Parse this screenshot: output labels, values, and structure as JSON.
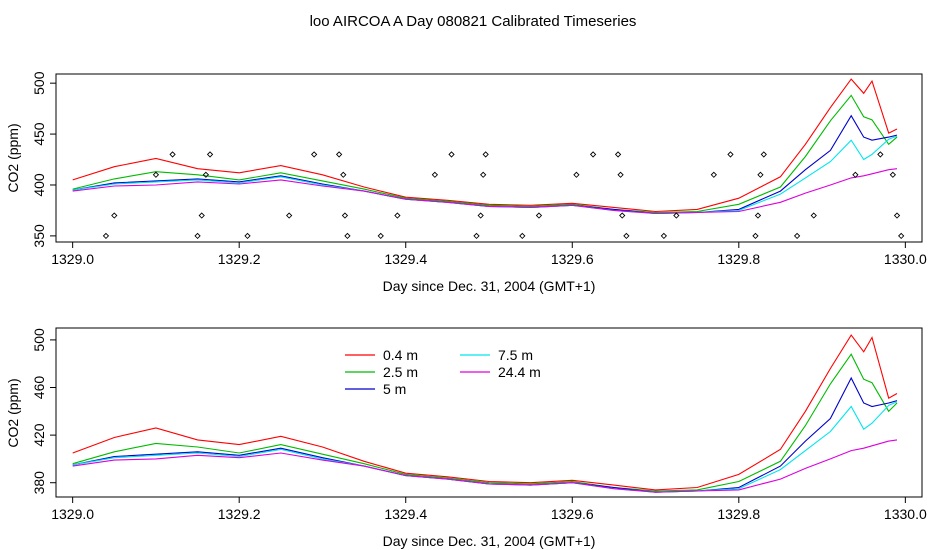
{
  "title": "loo AIRCOA A  Day 080821  Calibrated Timeseries",
  "colors": {
    "0.4 m": "#ff0000",
    "2.5 m": "#00bb00",
    "5 m": "#0000cc",
    "7.5 m": "#00e5ee",
    "24.4 m": "#dd00dd",
    "points": "#000000"
  },
  "chart_data": [
    {
      "type": "line",
      "title": "",
      "xlabel": "Day since Dec. 31, 2004 (GMT+1)",
      "ylabel": "CO2 (ppm)",
      "xlim": [
        1328.98,
        1330.02
      ],
      "ylim": [
        344,
        509
      ],
      "xticks": [
        "1329.0",
        "1329.2",
        "1329.4",
        "1329.6",
        "1329.8",
        "1330.0"
      ],
      "yticks": [
        "350",
        "400",
        "450",
        "500"
      ],
      "x": [
        1329.0,
        1329.05,
        1329.1,
        1329.15,
        1329.2,
        1329.25,
        1329.3,
        1329.35,
        1329.4,
        1329.45,
        1329.5,
        1329.55,
        1329.6,
        1329.65,
        1329.7,
        1329.75,
        1329.8,
        1329.85,
        1329.88,
        1329.91,
        1329.935,
        1329.95,
        1329.96,
        1329.98,
        1329.99
      ],
      "series": [
        {
          "name": "0.4 m",
          "values": [
            405,
            418,
            426,
            416,
            412,
            419,
            410,
            398,
            388,
            385,
            381,
            380,
            382,
            378,
            374,
            376,
            387,
            408,
            440,
            476,
            504,
            490,
            502,
            451,
            455
          ]
        },
        {
          "name": "2.5 m",
          "values": [
            396,
            406,
            413,
            410,
            405,
            412,
            404,
            396,
            387,
            384,
            380,
            379,
            381,
            376,
            373,
            374,
            381,
            398,
            428,
            463,
            488,
            467,
            464,
            440,
            447
          ]
        },
        {
          "name": "5 m",
          "values": [
            395,
            402,
            404,
            406,
            403,
            409,
            401,
            394,
            386,
            383,
            379,
            378,
            380,
            376,
            372,
            373,
            376,
            394,
            415,
            434,
            468,
            447,
            444,
            447,
            449
          ]
        },
        {
          "name": "7.5 m",
          "values": [
            395,
            401,
            403,
            405,
            402,
            408,
            400,
            394,
            386,
            383,
            379,
            378,
            380,
            375,
            372,
            373,
            375,
            391,
            407,
            423,
            444,
            425,
            430,
            445,
            448
          ]
        },
        {
          "name": "24.4 m",
          "values": [
            394,
            399,
            400,
            403,
            401,
            405,
            399,
            394,
            386,
            383,
            379,
            378,
            380,
            375,
            372,
            373,
            374,
            383,
            392,
            400,
            407,
            409,
            411,
            415,
            416
          ]
        }
      ],
      "points": [
        [
          1329.04,
          350
        ],
        [
          1329.05,
          370
        ],
        [
          1329.1,
          410
        ],
        [
          1329.12,
          430
        ],
        [
          1329.15,
          350
        ],
        [
          1329.155,
          370
        ],
        [
          1329.16,
          410
        ],
        [
          1329.165,
          430
        ],
        [
          1329.21,
          350
        ],
        [
          1329.26,
          370
        ],
        [
          1329.29,
          430
        ],
        [
          1329.32,
          430
        ],
        [
          1329.325,
          410
        ],
        [
          1329.327,
          370
        ],
        [
          1329.33,
          350
        ],
        [
          1329.37,
          350
        ],
        [
          1329.39,
          370
        ],
        [
          1329.435,
          410
        ],
        [
          1329.455,
          430
        ],
        [
          1329.485,
          350
        ],
        [
          1329.49,
          370
        ],
        [
          1329.493,
          410
        ],
        [
          1329.496,
          430
        ],
        [
          1329.54,
          350
        ],
        [
          1329.56,
          370
        ],
        [
          1329.605,
          410
        ],
        [
          1329.625,
          430
        ],
        [
          1329.655,
          430
        ],
        [
          1329.658,
          410
        ],
        [
          1329.66,
          370
        ],
        [
          1329.665,
          350
        ],
        [
          1329.71,
          350
        ],
        [
          1329.725,
          370
        ],
        [
          1329.77,
          410
        ],
        [
          1329.79,
          430
        ],
        [
          1329.82,
          350
        ],
        [
          1329.823,
          370
        ],
        [
          1329.826,
          410
        ],
        [
          1329.83,
          430
        ],
        [
          1329.87,
          350
        ],
        [
          1329.89,
          370
        ],
        [
          1329.94,
          410
        ],
        [
          1329.97,
          430
        ],
        [
          1329.985,
          410
        ],
        [
          1329.99,
          370
        ],
        [
          1329.995,
          350
        ]
      ]
    },
    {
      "type": "line",
      "title": "",
      "xlabel": "Day since Dec. 31, 2004 (GMT+1)",
      "ylabel": "CO2 (ppm)",
      "xlim": [
        1328.98,
        1330.02
      ],
      "ylim": [
        368,
        510
      ],
      "xticks": [
        "1329.0",
        "1329.2",
        "1329.4",
        "1329.6",
        "1329.8",
        "1330.0"
      ],
      "yticks": [
        "380",
        "420",
        "460",
        "500"
      ],
      "legend": "top-left",
      "legend_labels": [
        "0.4 m",
        "2.5 m",
        "5 m",
        "7.5 m",
        "24.4 m"
      ]
    }
  ]
}
